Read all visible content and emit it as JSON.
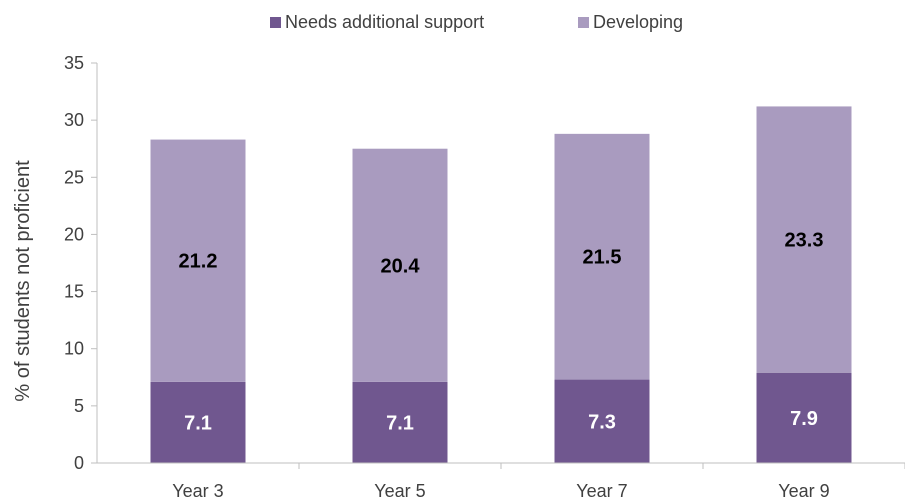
{
  "chart_data": {
    "type": "bar",
    "stacked": true,
    "categories": [
      "Year 3",
      "Year 5",
      "Year 7",
      "Year 9"
    ],
    "series": [
      {
        "name": "Needs additional support",
        "values": [
          7.1,
          7.1,
          7.3,
          7.9
        ],
        "color": "#70578f",
        "label_color": "#ffffff"
      },
      {
        "name": "Developing",
        "values": [
          21.2,
          20.4,
          21.5,
          23.3
        ],
        "color": "#a99bbf",
        "label_color": "#000000"
      }
    ],
    "title": "",
    "xlabel": "",
    "ylabel": "% of students not proficient",
    "ylim": [
      0,
      35
    ],
    "yticks": [
      0,
      5,
      10,
      15,
      20,
      25,
      30,
      35
    ],
    "grid": false,
    "legend_position": "top"
  }
}
